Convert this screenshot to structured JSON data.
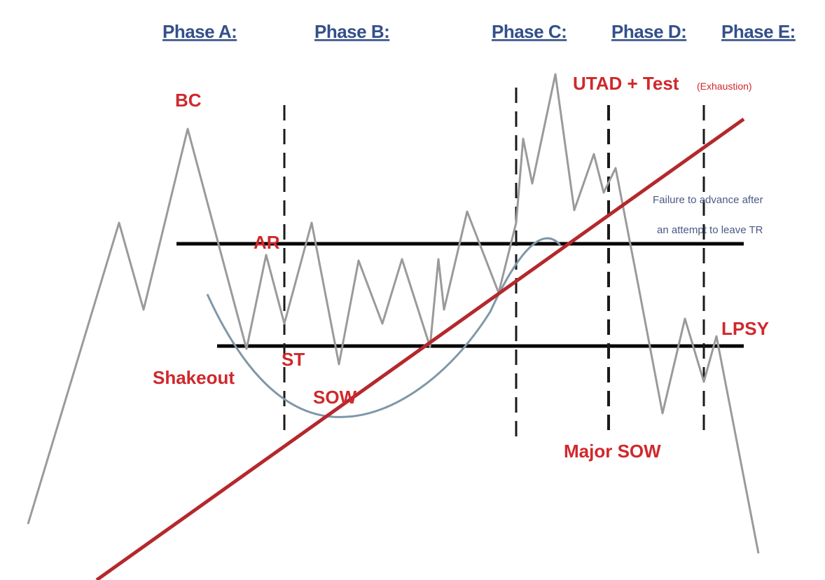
{
  "colors": {
    "phase_label": "#33508a",
    "event_label": "#d0282c",
    "note_text": "#4a5a86",
    "price_path": "#9a9a9a",
    "range_lines": "#000000",
    "dividers": "#1a1a1a",
    "trend_line": "#b4282c",
    "curve": "#7f98a8"
  },
  "phases": [
    "Phase A:",
    "Phase B:",
    "Phase C:",
    "Phase D:",
    "Phase E:"
  ],
  "events": {
    "bc": "BC",
    "ar": "AR",
    "st": "ST",
    "shakeout": "Shakeout",
    "sow": "SOW",
    "utad_main": "UTAD + Test",
    "utad_sub": "(Exhaustion)",
    "major_sow": "Major SOW",
    "lpsy": "LPSY"
  },
  "note": {
    "line1": "Failure to advance after",
    "line2": "an attempt to leave TR"
  }
}
